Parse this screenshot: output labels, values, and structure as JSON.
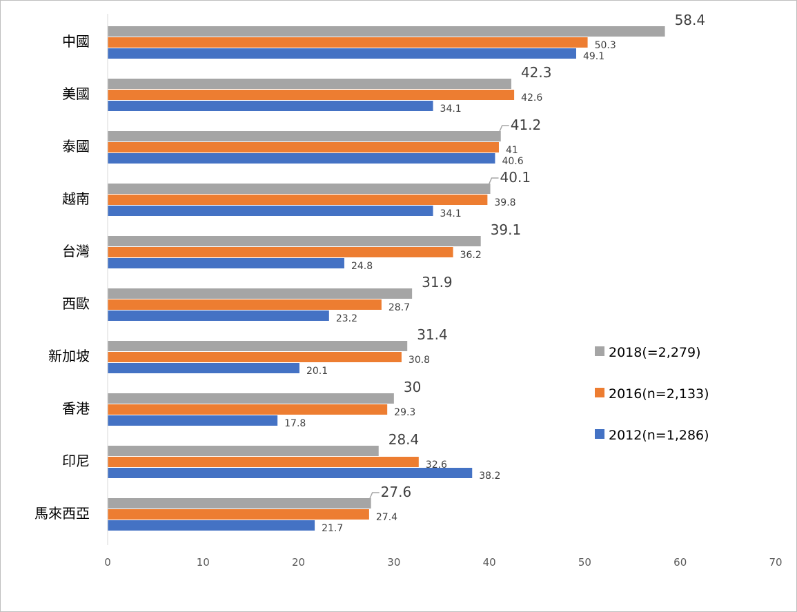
{
  "chart_data": {
    "type": "bar",
    "orientation": "horizontal",
    "title": "",
    "xlabel": "",
    "ylabel": "",
    "xlim": [
      0,
      70
    ],
    "x_ticks": [
      "0",
      "10",
      "20",
      "30",
      "40",
      "50",
      "60",
      "70"
    ],
    "grid": false,
    "legend_position": "right",
    "categories": [
      "中國",
      "美國",
      "泰國",
      "越南",
      "台灣",
      "西歐",
      "新加坡",
      "香港",
      "印尼",
      "馬來西亞"
    ],
    "series": [
      {
        "name": "2018(=2,279)",
        "color": "#a5a5a5",
        "values": [
          58.4,
          42.3,
          41.2,
          40.1,
          39.1,
          31.9,
          31.4,
          30,
          28.4,
          27.6
        ],
        "labels": [
          "58.4",
          "42.3",
          "41.2",
          "40.1",
          "39.1",
          "31.9",
          "31.4",
          "30",
          "28.4",
          "27.6"
        ]
      },
      {
        "name": "2016(n=2,133)",
        "color": "#ed7d31",
        "values": [
          50.3,
          42.6,
          41,
          39.8,
          36.2,
          28.7,
          30.8,
          29.3,
          32.6,
          27.4
        ],
        "labels": [
          "50.3",
          "42.6",
          "41",
          "39.8",
          "36.2",
          "28.7",
          "30.8",
          "29.3",
          "32.6",
          "27.4"
        ]
      },
      {
        "name": "2012(n=1,286)",
        "color": "#4472c4",
        "values": [
          49.1,
          34.1,
          40.6,
          34.1,
          24.8,
          23.2,
          20.1,
          17.8,
          38.2,
          21.7
        ],
        "labels": [
          "49.1",
          "34.1",
          "40.6",
          "34.1",
          "24.8",
          "23.2",
          "20.1",
          "17.8",
          "38.2",
          "21.7"
        ]
      }
    ]
  }
}
